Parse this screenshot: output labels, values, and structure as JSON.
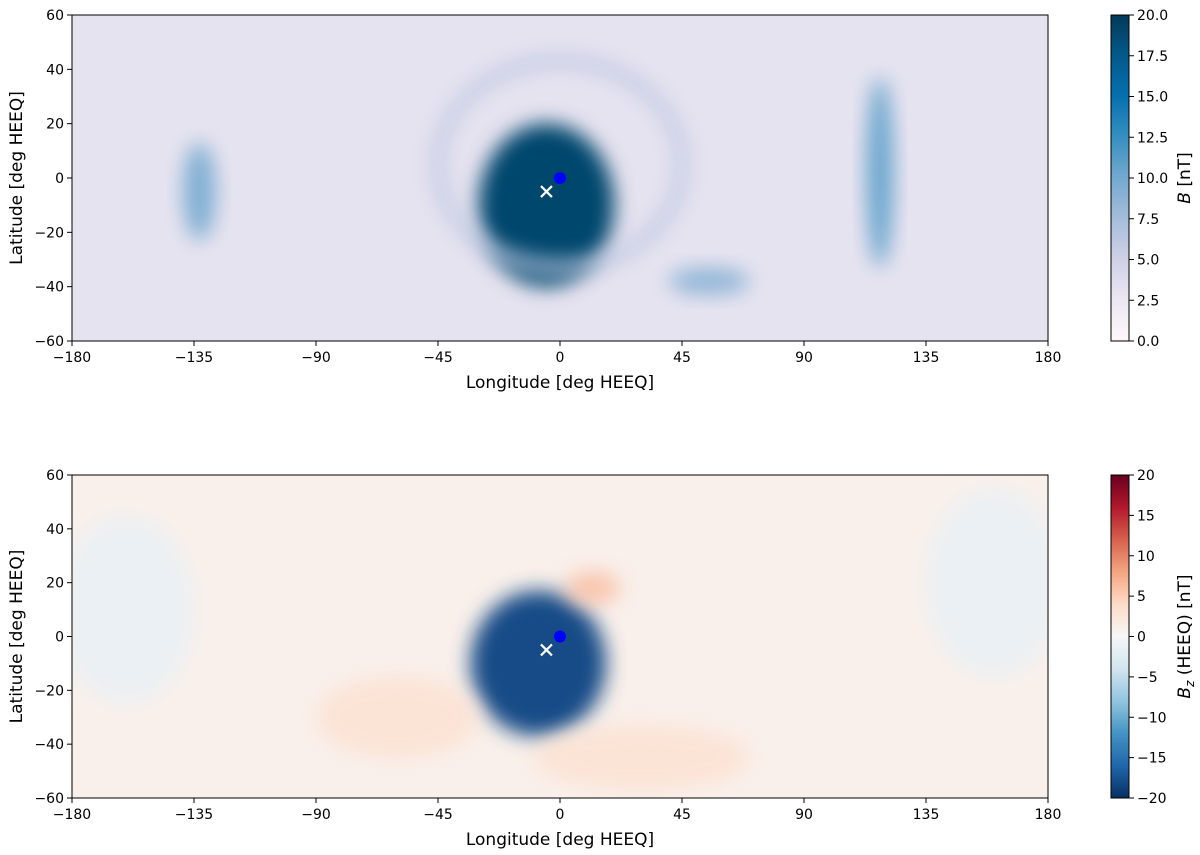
{
  "chart_data": [
    {
      "type": "heatmap",
      "quantity": "B",
      "xlabel": "Longitude [deg HEEQ]",
      "ylabel": "Latitude [deg HEEQ]",
      "colorbar_label": "B [nT]",
      "xlim": [
        -180,
        180
      ],
      "ylim": [
        -60,
        60
      ],
      "x_ticks": [
        -180,
        -135,
        -90,
        -45,
        0,
        45,
        90,
        135,
        180
      ],
      "x_tick_labels": [
        "−180",
        "−135",
        "−90",
        "−45",
        "0",
        "45",
        "90",
        "135",
        "180"
      ],
      "y_ticks": [
        -60,
        -40,
        -20,
        0,
        20,
        40,
        60
      ],
      "y_tick_labels": [
        "−60",
        "−40",
        "−20",
        "0",
        "20",
        "40",
        "60"
      ],
      "clim": [
        0,
        20
      ],
      "colorbar_ticks": [
        0,
        2.5,
        5,
        7.5,
        10,
        12.5,
        15,
        17.5,
        20
      ],
      "colorbar_tick_labels": [
        "0.0",
        "2.5",
        "5.0",
        "7.5",
        "10.0",
        "12.5",
        "15.0",
        "17.5",
        "20.0"
      ],
      "colormap": "PuBu",
      "markers": [
        {
          "shape": "circle",
          "lon": 0,
          "lat": 0,
          "color": "#0000ff"
        },
        {
          "shape": "x",
          "lon": -5,
          "lat": -5,
          "color": "#ffffff"
        }
      ],
      "features": [
        {
          "kind": "core",
          "lon": -5,
          "lat": -10,
          "rx": 25,
          "ry": 30,
          "value": 19
        },
        {
          "kind": "shell",
          "lon": 0,
          "lat": 5,
          "rx": 45,
          "ry": 38,
          "value": 6
        },
        {
          "kind": "band",
          "lon": -133,
          "lat": -5,
          "rx": 6,
          "ry": 18,
          "value": 10
        },
        {
          "kind": "band",
          "lon": 118,
          "lat": 2,
          "rx": 5,
          "ry": 35,
          "value": 11
        },
        {
          "kind": "streak",
          "lon": 55,
          "lat": -38,
          "rx": 15,
          "ry": 5,
          "value": 9
        }
      ]
    },
    {
      "type": "heatmap",
      "quantity": "Bz",
      "xlabel": "Longitude [deg HEEQ]",
      "ylabel": "Latitude [deg HEEQ]",
      "colorbar_label": "Bz (HEEQ) [nT]",
      "xlim": [
        -180,
        180
      ],
      "ylim": [
        -60,
        60
      ],
      "x_ticks": [
        -180,
        -135,
        -90,
        -45,
        0,
        45,
        90,
        135,
        180
      ],
      "x_tick_labels": [
        "−180",
        "−135",
        "−90",
        "−45",
        "0",
        "45",
        "90",
        "135",
        "180"
      ],
      "y_ticks": [
        -60,
        -40,
        -20,
        0,
        20,
        40,
        60
      ],
      "y_tick_labels": [
        "−60",
        "−40",
        "−20",
        "0",
        "20",
        "40",
        "60"
      ],
      "clim": [
        -20,
        20
      ],
      "colorbar_ticks": [
        -20,
        -15,
        -10,
        -5,
        0,
        5,
        10,
        15,
        20
      ],
      "colorbar_tick_labels": [
        "−20",
        "−15",
        "−10",
        "−5",
        "0",
        "5",
        "10",
        "15",
        "20"
      ],
      "colormap": "RdBu_r",
      "markers": [
        {
          "shape": "circle",
          "lon": 0,
          "lat": 0,
          "color": "#0000ff"
        },
        {
          "shape": "x",
          "lon": -5,
          "lat": -5,
          "color": "#ffffff"
        }
      ],
      "features": [
        {
          "kind": "core",
          "lon": -8,
          "lat": -10,
          "rx": 25,
          "ry": 27,
          "value": -18
        },
        {
          "kind": "patch",
          "lon": 12,
          "lat": 18,
          "rx": 10,
          "ry": 6,
          "value": 6
        },
        {
          "kind": "patch",
          "lon": 30,
          "lat": -45,
          "rx": 40,
          "ry": 12,
          "value": 3
        },
        {
          "kind": "patch",
          "lon": -60,
          "lat": -30,
          "rx": 30,
          "ry": 15,
          "value": 3
        },
        {
          "kind": "patch",
          "lon": 160,
          "lat": 20,
          "rx": 25,
          "ry": 35,
          "value": -1.5
        },
        {
          "kind": "patch",
          "lon": -160,
          "lat": 10,
          "rx": 25,
          "ry": 35,
          "value": -1.5
        }
      ]
    }
  ]
}
